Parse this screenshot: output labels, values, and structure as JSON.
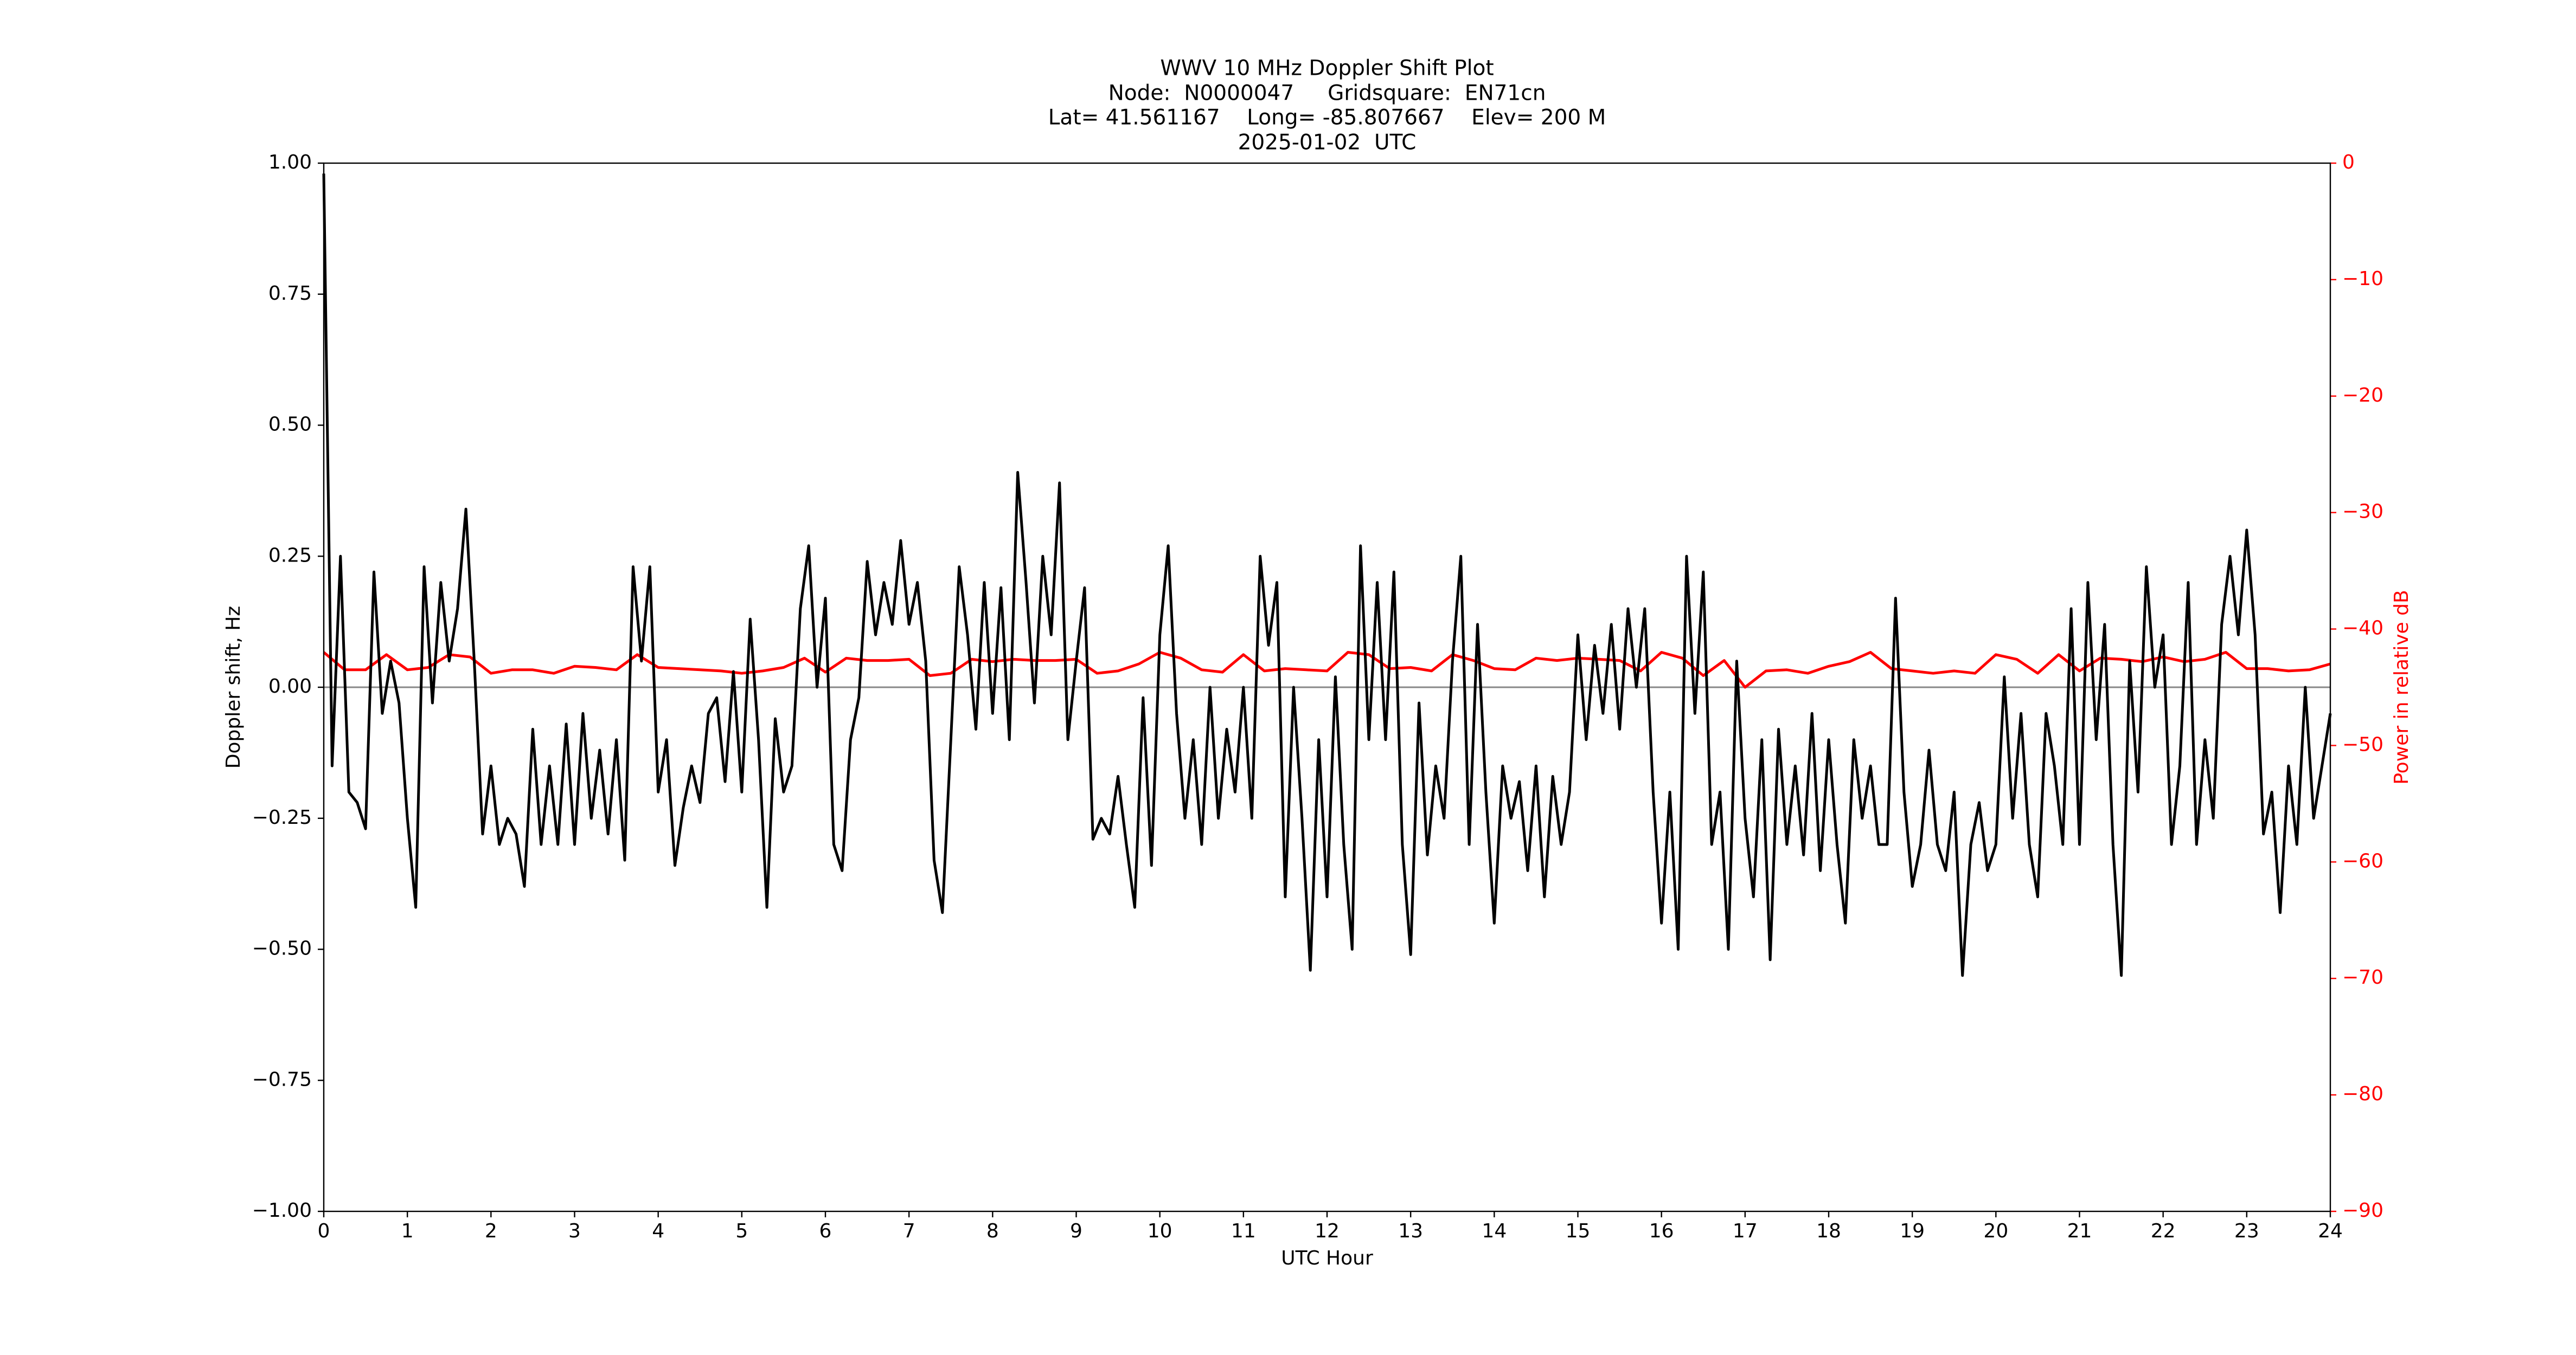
{
  "chart_data": {
    "type": "line",
    "title": "WWV 10 MHz Doppler Shift Plot",
    "subtitle": [
      "Node:  N0000047     Gridsquare:  EN71cn",
      "Lat= 41.561167    Long= -85.807667    Elev= 200 M",
      "2025-01-02  UTC"
    ],
    "xlabel": "UTC Hour",
    "ylabel": "Doppler shift, Hz",
    "y2label": "Power in relative dB",
    "xlim": [
      0,
      24
    ],
    "xticks": [
      0,
      1,
      2,
      3,
      4,
      5,
      6,
      7,
      8,
      9,
      10,
      11,
      12,
      13,
      14,
      15,
      16,
      17,
      18,
      19,
      20,
      21,
      22,
      23,
      24
    ],
    "ylim": [
      -1,
      1
    ],
    "yticks": [
      {
        "value": -1,
        "label": "−1.00"
      },
      {
        "value": -0.75,
        "label": "−0.75"
      },
      {
        "value": -0.5,
        "label": "−0.50"
      },
      {
        "value": -0.25,
        "label": "−0.25"
      },
      {
        "value": 0,
        "label": "0.00"
      },
      {
        "value": 0.25,
        "label": "0.25"
      },
      {
        "value": 0.5,
        "label": "0.50"
      },
      {
        "value": 0.75,
        "label": "0.75"
      },
      {
        "value": 1,
        "label": "1.00"
      }
    ],
    "y2lim": [
      -90,
      0
    ],
    "y2ticks": [
      {
        "value": -90,
        "label": "−90"
      },
      {
        "value": -80,
        "label": "−80"
      },
      {
        "value": -70,
        "label": "−70"
      },
      {
        "value": -60,
        "label": "−60"
      },
      {
        "value": -50,
        "label": "−50"
      },
      {
        "value": -40,
        "label": "−40"
      },
      {
        "value": -30,
        "label": "−30"
      },
      {
        "value": -20,
        "label": "−20"
      },
      {
        "value": -10,
        "label": "−10"
      },
      0
    ],
    "y2color": "#ff0000",
    "hline": 0,
    "hline_color": "#888888",
    "series": [
      {
        "name": "Doppler shift",
        "color": "#000000",
        "x": [
          0,
          0.1,
          0.2,
          0.3,
          0.4,
          0.5,
          0.6,
          0.7,
          0.8,
          0.9,
          1,
          1.1,
          1.2,
          1.3,
          1.4,
          1.5,
          1.6,
          1.7,
          1.8,
          1.9,
          2,
          2.1,
          2.2,
          2.3,
          2.4,
          2.5,
          2.6,
          2.7,
          2.8,
          2.9,
          3,
          3.1,
          3.2,
          3.3,
          3.4,
          3.5,
          3.6,
          3.7,
          3.8,
          3.9,
          4,
          4.1,
          4.2,
          4.3,
          4.4,
          4.5,
          4.6,
          4.7,
          4.8,
          4.9,
          5,
          5.1,
          5.2,
          5.3,
          5.4,
          5.5,
          5.6,
          5.7,
          5.8,
          5.9,
          6,
          6.1,
          6.2,
          6.3,
          6.4,
          6.5,
          6.6,
          6.7,
          6.8,
          6.9,
          7,
          7.1,
          7.2,
          7.3,
          7.4,
          7.5,
          7.6,
          7.7,
          7.8,
          7.9,
          8,
          8.1,
          8.2,
          8.3,
          8.4,
          8.5,
          8.6,
          8.7,
          8.8,
          8.9,
          9,
          9.1,
          9.2,
          9.3,
          9.4,
          9.5,
          9.6,
          9.7,
          9.8,
          9.9,
          10,
          10.1,
          10.2,
          10.3,
          10.4,
          10.5,
          10.6,
          10.7,
          10.8,
          10.9,
          11,
          11.1,
          11.2,
          11.3,
          11.4,
          11.5,
          11.6,
          11.7,
          11.8,
          11.9,
          12,
          12.1,
          12.2,
          12.3,
          12.4,
          12.5,
          12.6,
          12.7,
          12.8,
          12.9,
          13,
          13.1,
          13.2,
          13.3,
          13.4,
          13.5,
          13.6,
          13.7,
          13.8,
          13.9,
          14,
          14.1,
          14.2,
          14.3,
          14.4,
          14.5,
          14.6,
          14.7,
          14.8,
          14.9,
          15,
          15.1,
          15.2,
          15.3,
          15.4,
          15.5,
          15.6,
          15.7,
          15.8,
          15.9,
          16,
          16.1,
          16.2,
          16.3,
          16.4,
          16.5,
          16.6,
          16.7,
          16.8,
          16.9,
          17,
          17.1,
          17.2,
          17.3,
          17.4,
          17.5,
          17.6,
          17.7,
          17.8,
          17.9,
          18,
          18.1,
          18.2,
          18.3,
          18.4,
          18.5,
          18.6,
          18.7,
          18.8,
          18.9,
          19,
          19.1,
          19.2,
          19.3,
          19.4,
          19.5,
          19.6,
          19.7,
          19.8,
          19.9,
          20,
          20.1,
          20.2,
          20.3,
          20.4,
          20.5,
          20.6,
          20.7,
          20.8,
          20.9,
          21,
          21.1,
          21.2,
          21.3,
          21.4,
          21.5,
          21.6,
          21.7,
          21.8,
          21.9,
          22,
          22.1,
          22.2,
          22.3,
          22.4,
          22.5,
          22.6,
          22.7,
          22.8,
          22.9,
          23,
          23.1,
          23.2,
          23.3,
          23.4,
          23.5,
          23.6,
          23.7,
          23.8,
          23.9,
          24
        ],
        "values": [
          0.98,
          -0.15,
          0.25,
          -0.2,
          -0.22,
          -0.27,
          0.22,
          -0.05,
          0.05,
          -0.03,
          -0.25,
          -0.42,
          0.23,
          -0.03,
          0.2,
          0.05,
          0.15,
          0.34,
          0.05,
          -0.28,
          -0.15,
          -0.3,
          -0.25,
          -0.28,
          -0.38,
          -0.08,
          -0.3,
          -0.15,
          -0.3,
          -0.07,
          -0.3,
          -0.05,
          -0.25,
          -0.12,
          -0.28,
          -0.1,
          -0.33,
          0.23,
          0.05,
          0.23,
          -0.2,
          -0.1,
          -0.34,
          -0.23,
          -0.15,
          -0.22,
          -0.05,
          -0.02,
          -0.18,
          0.03,
          -0.2,
          0.13,
          -0.1,
          -0.42,
          -0.06,
          -0.2,
          -0.15,
          0.15,
          0.27,
          0,
          0.17,
          -0.3,
          -0.35,
          -0.1,
          -0.02,
          0.24,
          0.1,
          0.2,
          0.12,
          0.28,
          0.12,
          0.2,
          0.05,
          -0.33,
          -0.43,
          -0.1,
          0.23,
          0.1,
          -0.08,
          0.2,
          -0.05,
          0.19,
          -0.1,
          0.41,
          0.2,
          -0.03,
          0.25,
          0.1,
          0.39,
          -0.1,
          0.05,
          0.19,
          -0.29,
          -0.25,
          -0.28,
          -0.17,
          -0.3,
          -0.42,
          -0.02,
          -0.34,
          0.1,
          0.27,
          -0.05,
          -0.25,
          -0.1,
          -0.3,
          0,
          -0.25,
          -0.08,
          -0.2,
          0,
          -0.25,
          0.25,
          0.08,
          0.2,
          -0.4,
          0,
          -0.25,
          -0.54,
          -0.1,
          -0.4,
          0.02,
          -0.3,
          -0.5,
          0.27,
          -0.1,
          0.2,
          -0.1,
          0.22,
          -0.3,
          -0.51,
          -0.03,
          -0.32,
          -0.15,
          -0.25,
          0.05,
          0.25,
          -0.3,
          0.12,
          -0.2,
          -0.45,
          -0.15,
          -0.25,
          -0.18,
          -0.35,
          -0.15,
          -0.4,
          -0.17,
          -0.3,
          -0.2,
          0.1,
          -0.1,
          0.08,
          -0.05,
          0.12,
          -0.08,
          0.15,
          0,
          0.15,
          -0.2,
          -0.45,
          -0.2,
          -0.5,
          0.25,
          -0.05,
          0.22,
          -0.3,
          -0.2,
          -0.5,
          0.05,
          -0.25,
          -0.4,
          -0.1,
          -0.52,
          -0.08,
          -0.3,
          -0.15,
          -0.32,
          -0.05,
          -0.35,
          -0.1,
          -0.3,
          -0.45,
          -0.1,
          -0.25,
          -0.15,
          -0.3,
          -0.3,
          0.17,
          -0.2,
          -0.38,
          -0.3,
          -0.12,
          -0.3,
          -0.35,
          -0.2,
          -0.55,
          -0.3,
          -0.22,
          -0.35,
          -0.3,
          0.02,
          -0.25,
          -0.05,
          -0.3,
          -0.4,
          -0.05,
          -0.15,
          -0.3,
          0.15,
          -0.3,
          0.2,
          -0.1,
          0.12,
          -0.3,
          -0.55,
          0.05,
          -0.2,
          0.23,
          0,
          0.1,
          -0.3,
          -0.15,
          0.2,
          -0.3,
          -0.1,
          -0.25,
          0.12,
          0.25,
          0.1,
          0.3,
          0.1,
          -0.28,
          -0.2,
          -0.43,
          -0.15,
          -0.3,
          0,
          -0.25,
          -0.15,
          -0.05
        ]
      },
      {
        "name": "Power",
        "color": "#ff0000",
        "axis": "y2",
        "x": [
          0,
          0.25,
          0.5,
          0.75,
          1,
          1.25,
          1.5,
          1.75,
          2,
          2.25,
          2.5,
          2.75,
          3,
          3.25,
          3.5,
          3.75,
          4,
          4.25,
          4.5,
          4.75,
          5,
          5.25,
          5.5,
          5.75,
          6,
          6.25,
          6.5,
          6.75,
          7,
          7.25,
          7.5,
          7.75,
          8,
          8.25,
          8.5,
          8.75,
          9,
          9.25,
          9.5,
          9.75,
          10,
          10.25,
          10.5,
          10.75,
          11,
          11.25,
          11.5,
          11.75,
          12,
          12.25,
          12.5,
          12.75,
          13,
          13.25,
          13.5,
          13.75,
          14,
          14.25,
          14.5,
          14.75,
          15,
          15.25,
          15.5,
          15.75,
          16,
          16.25,
          16.5,
          16.75,
          17,
          17.25,
          17.5,
          17.75,
          18,
          18.25,
          18.5,
          18.75,
          19,
          19.25,
          19.5,
          19.75,
          20,
          20.25,
          20.5,
          20.75,
          21,
          21.25,
          21.5,
          21.75,
          22,
          22.25,
          22.5,
          22.75,
          23,
          23.25,
          23.5,
          23.75,
          24
        ],
        "values": [
          -42,
          -43.5,
          -43.5,
          -42.2,
          -43.5,
          -43.3,
          -42.2,
          -42.4,
          -43.8,
          -43.5,
          -43.5,
          -43.8,
          -43.2,
          -43.3,
          -43.5,
          -42.2,
          -43.3,
          -43.4,
          -43.5,
          -43.6,
          -43.8,
          -43.6,
          -43.3,
          -42.5,
          -43.7,
          -42.5,
          -42.7,
          -42.7,
          -42.6,
          -44,
          -43.8,
          -42.6,
          -42.8,
          -42.6,
          -42.7,
          -42.7,
          -42.6,
          -43.8,
          -43.6,
          -43,
          -42,
          -42.5,
          -43.5,
          -43.7,
          -42.2,
          -43.6,
          -43.4,
          -43.5,
          -43.6,
          -42,
          -42.2,
          -43.4,
          -43.3,
          -43.6,
          -42.2,
          -42.7,
          -43.4,
          -43.5,
          -42.5,
          -42.7,
          -42.5,
          -42.6,
          -42.7,
          -43.6,
          -42,
          -42.5,
          -44,
          -42.7,
          -45,
          -43.6,
          -43.5,
          -43.8,
          -43.2,
          -42.8,
          -42,
          -43.4,
          -43.6,
          -43.8,
          -43.6,
          -43.8,
          -42.2,
          -42.6,
          -43.8,
          -42.2,
          -43.6,
          -42.5,
          -42.6,
          -42.8,
          -42.4,
          -42.8,
          -42.6,
          -42,
          -43.4,
          -43.4,
          -43.6,
          -43.5,
          -43
        ]
      }
    ]
  }
}
